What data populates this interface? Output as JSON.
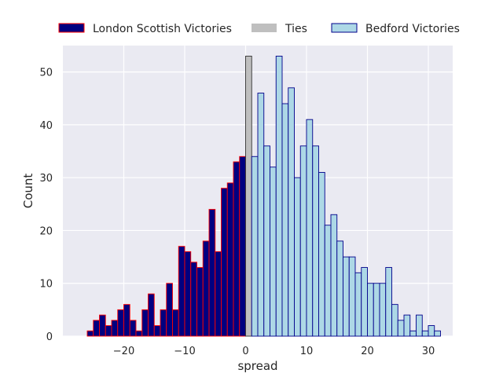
{
  "chart_data": {
    "type": "bar",
    "title": "",
    "xlabel": "spread",
    "ylabel": "Count",
    "xlim": [
      -30,
      34
    ],
    "ylim": [
      0,
      55
    ],
    "x_ticks": [
      -20,
      -10,
      0,
      10,
      20,
      30
    ],
    "x_tick_labels": [
      "−20",
      "−10",
      "0",
      "10",
      "20",
      "30"
    ],
    "y_ticks": [
      0,
      10,
      20,
      30,
      40,
      50
    ],
    "y_tick_labels": [
      "0",
      "10",
      "20",
      "30",
      "40",
      "50"
    ],
    "grid": true,
    "legend_position": "top",
    "background": "#eaeaf2",
    "series": [
      {
        "name": "London Scottish Victories",
        "color": "#000080",
        "edge": "#ff0000",
        "bins": [
          {
            "x": -26,
            "count": 1
          },
          {
            "x": -25,
            "count": 3
          },
          {
            "x": -24,
            "count": 4
          },
          {
            "x": -23,
            "count": 2
          },
          {
            "x": -22,
            "count": 3
          },
          {
            "x": -21,
            "count": 5
          },
          {
            "x": -20,
            "count": 6
          },
          {
            "x": -19,
            "count": 3
          },
          {
            "x": -18,
            "count": 1
          },
          {
            "x": -17,
            "count": 5
          },
          {
            "x": -16,
            "count": 8
          },
          {
            "x": -15,
            "count": 2
          },
          {
            "x": -14,
            "count": 5
          },
          {
            "x": -13,
            "count": 10
          },
          {
            "x": -12,
            "count": 5
          },
          {
            "x": -11,
            "count": 17
          },
          {
            "x": -10,
            "count": 16
          },
          {
            "x": -9,
            "count": 14
          },
          {
            "x": -8,
            "count": 13
          },
          {
            "x": -7,
            "count": 18
          },
          {
            "x": -6,
            "count": 24
          },
          {
            "x": -5,
            "count": 16
          },
          {
            "x": -4,
            "count": 28
          },
          {
            "x": -3,
            "count": 29
          },
          {
            "x": -2,
            "count": 33
          },
          {
            "x": -1,
            "count": 34
          }
        ]
      },
      {
        "name": "Ties",
        "color": "#bfbfbf",
        "edge": "#333333",
        "bins": [
          {
            "x": 0,
            "count": 53
          }
        ]
      },
      {
        "name": "Bedford Victories",
        "color": "#add8e6",
        "edge": "#00008b",
        "bins": [
          {
            "x": 1,
            "count": 34
          },
          {
            "x": 2,
            "count": 46
          },
          {
            "x": 3,
            "count": 36
          },
          {
            "x": 4,
            "count": 32
          },
          {
            "x": 5,
            "count": 53
          },
          {
            "x": 6,
            "count": 44
          },
          {
            "x": 7,
            "count": 47
          },
          {
            "x": 8,
            "count": 30
          },
          {
            "x": 9,
            "count": 36
          },
          {
            "x": 10,
            "count": 41
          },
          {
            "x": 11,
            "count": 36
          },
          {
            "x": 12,
            "count": 31
          },
          {
            "x": 13,
            "count": 21
          },
          {
            "x": 14,
            "count": 23
          },
          {
            "x": 15,
            "count": 18
          },
          {
            "x": 16,
            "count": 15
          },
          {
            "x": 17,
            "count": 15
          },
          {
            "x": 18,
            "count": 12
          },
          {
            "x": 19,
            "count": 13
          },
          {
            "x": 20,
            "count": 10
          },
          {
            "x": 21,
            "count": 10
          },
          {
            "x": 22,
            "count": 10
          },
          {
            "x": 23,
            "count": 13
          },
          {
            "x": 24,
            "count": 6
          },
          {
            "x": 25,
            "count": 3
          },
          {
            "x": 26,
            "count": 4
          },
          {
            "x": 27,
            "count": 1
          },
          {
            "x": 28,
            "count": 4
          },
          {
            "x": 29,
            "count": 1
          },
          {
            "x": 30,
            "count": 2
          },
          {
            "x": 31,
            "count": 1
          }
        ]
      }
    ]
  }
}
